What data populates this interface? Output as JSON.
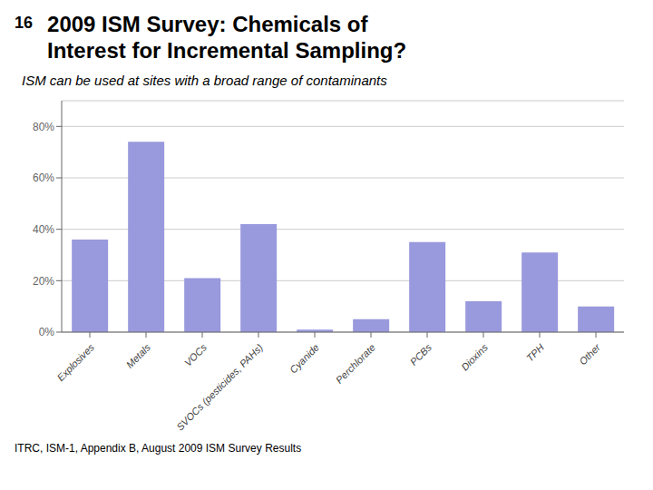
{
  "chart_data": {
    "type": "bar",
    "title": "2009 ISM Survey: Chemicals of\nInterest for Incremental Sampling?",
    "subtitle": "ISM can be used at sites with a broad range of contaminants",
    "annotations": [
      "16",
      "ITRC, ISM-1, Appendix B, August 2009 ISM Survey Results"
    ],
    "categories": [
      "Explosives",
      "Metals",
      "VOCs",
      "SVOCs (pesticides, PAHs)",
      "Cyanide",
      "Perchlorate",
      "PCBs",
      "Dioxins",
      "TPH",
      "Other"
    ],
    "values": [
      0.36,
      0.74,
      0.21,
      0.42,
      0.01,
      0.05,
      0.35,
      0.12,
      0.31,
      0.1
    ],
    "color": "#9999dd",
    "ylim": [
      0,
      0.9
    ],
    "yticks": [
      {
        "value": 0.0,
        "label": "0%"
      },
      {
        "value": 0.2,
        "label": "20%"
      },
      {
        "value": 0.4,
        "label": "40%"
      },
      {
        "value": 0.6,
        "label": "60%"
      },
      {
        "value": 0.8,
        "label": "80%"
      }
    ],
    "grid": true
  }
}
